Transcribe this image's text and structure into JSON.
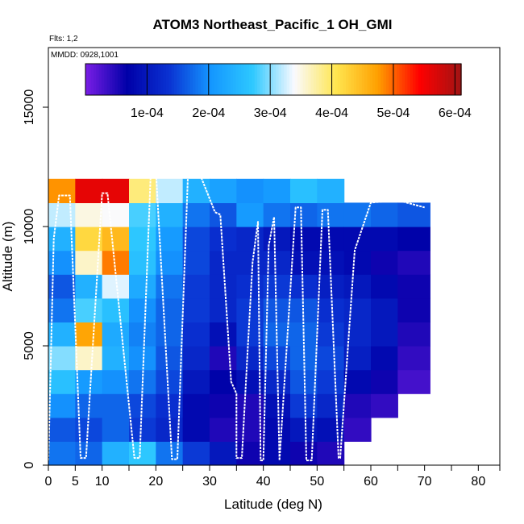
{
  "chart_data": {
    "type": "heatmap",
    "title": "ATOM3 Northeast_Pacific_1 OH_GMI",
    "flights_label": "Flts: 1,2",
    "mmdd_label": "MMDD: 0928,1001",
    "xlabel": "Latitude (deg N)",
    "ylabel": "Altitude (m)",
    "xlim": [
      0,
      84
    ],
    "ylim": [
      0,
      17500
    ],
    "x_ticks": [
      0,
      5,
      10,
      20,
      30,
      40,
      50,
      60,
      70,
      80
    ],
    "x_minor_ticks": [
      15,
      25,
      35,
      45,
      55,
      65,
      75,
      84
    ],
    "y_ticks": [
      0,
      5000,
      10000,
      15000
    ],
    "colorbar": {
      "range": [
        0,
        0.00061
      ],
      "tick_values": [
        0.0001,
        0.0002,
        0.0003,
        0.0004,
        0.0005,
        0.0006
      ],
      "tick_labels": [
        "1e-04",
        "2e-04",
        "3e-04",
        "4e-04",
        "5e-04",
        "6e-04"
      ],
      "colors": [
        "#7a1ee6",
        "#0000a8",
        "#0a32d2",
        "#1496ff",
        "#2dc8ff",
        "#fafaff",
        "#ffe650",
        "#ffa000",
        "#ff0000",
        "#a01414"
      ]
    },
    "altitude_bins_m": [
      0,
      1000,
      2000,
      3000,
      4000,
      5000,
      6000,
      7000,
      8000,
      9000,
      10000,
      11000,
      12000
    ],
    "latitude_bins": [
      {
        "lat": [
          0,
          5
        ],
        "oh_by_altitude": [
          0.00018,
          0.00016,
          0.0002,
          0.00026,
          0.0003,
          0.00024,
          0.00018,
          0.00016,
          0.0002,
          0.00024,
          0.00032,
          0.00048
        ]
      },
      {
        "lat": [
          5,
          10
        ],
        "oh_by_altitude": [
          0.00017,
          0.00015,
          0.00017,
          0.00021,
          0.00036,
          0.00047,
          0.00028,
          0.00024,
          0.00036,
          0.00042,
          0.00035,
          0.00056
        ]
      },
      {
        "lat": [
          10,
          15
        ],
        "oh_by_altitude": [
          0.00024,
          0.00017,
          0.00017,
          0.0002,
          0.00024,
          0.00023,
          0.00026,
          0.00033,
          0.00049,
          0.00045,
          0.00034,
          0.00056
        ]
      },
      {
        "lat": [
          15,
          20
        ],
        "oh_by_altitude": [
          0.00027,
          0.00014,
          0.00015,
          0.00018,
          0.0002,
          0.00019,
          0.0002,
          0.00023,
          0.00026,
          0.00027,
          0.00028,
          0.00039
        ]
      },
      {
        "lat": [
          20,
          25
        ],
        "oh_by_altitude": [
          0.00018,
          0.00012,
          0.00013,
          0.00015,
          0.00016,
          0.00017,
          0.00017,
          0.00018,
          0.0002,
          0.00021,
          0.00024,
          0.00032
        ]
      },
      {
        "lat": [
          25,
          30
        ],
        "oh_by_altitude": [
          0.00014,
          8e-05,
          8e-05,
          0.0001,
          0.00012,
          0.00013,
          0.00014,
          0.00014,
          0.00015,
          0.00015,
          0.00018,
          0.00024
        ]
      },
      {
        "lat": [
          30,
          35
        ],
        "oh_by_altitude": [
          0.0001,
          5e-05,
          6e-05,
          7e-05,
          5e-05,
          9e-05,
          0.00012,
          0.00012,
          0.00012,
          0.00013,
          0.00016,
          0.00022
        ]
      },
      {
        "lat": [
          35,
          40
        ],
        "oh_by_altitude": [
          6e-05,
          5e-05,
          5e-05,
          9e-05,
          0.00012,
          0.00014,
          0.00014,
          0.00013,
          0.00012,
          0.00012,
          0.00021,
          0.0002
        ]
      },
      {
        "lat": [
          40,
          45
        ],
        "oh_by_altitude": [
          8e-05,
          8e-05,
          9e-05,
          0.00012,
          0.00015,
          0.00017,
          0.00016,
          0.00014,
          0.00012,
          0.0001,
          0.00018,
          0.00021
        ]
      },
      {
        "lat": [
          45,
          50
        ],
        "oh_by_altitude": [
          6e-05,
          0.0001,
          0.00014,
          0.00016,
          0.00017,
          0.00017,
          0.00016,
          0.00013,
          9e-05,
          8e-05,
          0.00017,
          0.00026
        ]
      },
      {
        "lat": [
          50,
          55
        ],
        "oh_by_altitude": [
          5e-05,
          9e-05,
          0.00012,
          0.00014,
          0.00015,
          0.00014,
          0.00013,
          0.00011,
          9e-05,
          8e-05,
          0.00018,
          0.00024
        ]
      },
      {
        "lat": [
          55,
          60
        ],
        "oh_by_altitude": [
          null,
          4e-05,
          5e-05,
          8e-05,
          0.00011,
          0.00012,
          0.00012,
          0.0001,
          8e-05,
          8e-05,
          0.00018,
          null
        ]
      },
      {
        "lat": [
          60,
          65
        ],
        "oh_by_altitude": [
          null,
          null,
          4e-05,
          6e-05,
          8e-05,
          0.0001,
          0.0001,
          8e-05,
          6e-05,
          8e-05,
          0.00017,
          null
        ]
      },
      {
        "lat": [
          65,
          71
        ],
        "oh_by_altitude": [
          null,
          null,
          null,
          3e-05,
          4e-05,
          5e-05,
          6e-05,
          6e-05,
          5e-05,
          7e-05,
          0.00016,
          null
        ]
      }
    ],
    "flight_track": [
      [
        0,
        200
      ],
      [
        1,
        9500
      ],
      [
        2,
        11300
      ],
      [
        4,
        11300
      ],
      [
        6,
        300
      ],
      [
        7,
        300
      ],
      [
        10,
        11400
      ],
      [
        11,
        11400
      ],
      [
        16,
        300
      ],
      [
        17,
        300
      ],
      [
        19,
        12000
      ],
      [
        20,
        12400
      ],
      [
        23,
        250
      ],
      [
        24,
        250
      ],
      [
        26,
        12300
      ],
      [
        28,
        12300
      ],
      [
        31,
        10600
      ],
      [
        32,
        10500
      ],
      [
        33,
        7000
      ],
      [
        34,
        3500
      ],
      [
        35,
        3000
      ],
      [
        35,
        300
      ],
      [
        36,
        300
      ],
      [
        37,
        4500
      ],
      [
        38,
        8500
      ],
      [
        39,
        10200
      ],
      [
        39.5,
        200
      ],
      [
        40,
        200
      ],
      [
        41,
        9200
      ],
      [
        42,
        10400
      ],
      [
        43,
        200
      ],
      [
        46,
        10800
      ],
      [
        47,
        10800
      ],
      [
        48,
        200
      ],
      [
        49,
        200
      ],
      [
        51,
        10700
      ],
      [
        52,
        10700
      ],
      [
        54,
        300
      ],
      [
        54.3,
        300
      ],
      [
        57,
        9000
      ],
      [
        60,
        11000
      ],
      [
        65,
        11100
      ],
      [
        70,
        10800
      ]
    ]
  }
}
